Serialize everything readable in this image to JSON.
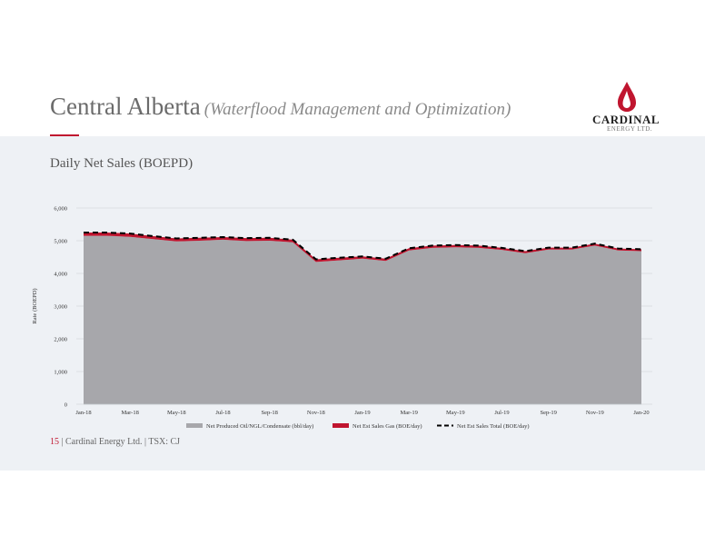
{
  "header": {
    "title": "Central Alberta",
    "subtitle": "(Waterflood Management and Optimization)"
  },
  "logo": {
    "name": "CARDINAL",
    "sub": "ENERGY LTD.",
    "icon": "flame-drop-icon",
    "color": "#c0152f"
  },
  "footer": {
    "page_number": "15",
    "text": "| Cardinal Energy Ltd. | TSX: CJ"
  },
  "chart_data": {
    "type": "area",
    "title": "Daily Net Sales (BOEPD)",
    "ylabel": "Rate (BOEPD)",
    "xlabel": "",
    "ylim": [
      0,
      6000
    ],
    "yticks": [
      "0",
      "1,000",
      "2,000",
      "3,000",
      "4,000",
      "5,000",
      "6,000"
    ],
    "xticks": [
      "Jan-18",
      "Mar-18",
      "May-18",
      "Jul-18",
      "Sep-18",
      "Nov-18",
      "Jan-19",
      "Mar-19",
      "May-19",
      "Jul-19",
      "Sep-19",
      "Nov-19",
      "Jan-20"
    ],
    "grid": true,
    "legend_position": "bottom",
    "x": [
      "Jan-18",
      "Feb-18",
      "Mar-18",
      "Apr-18",
      "May-18",
      "Jun-18",
      "Jul-18",
      "Aug-18",
      "Sep-18",
      "Oct-18",
      "Nov-18",
      "Dec-18",
      "Jan-19",
      "Feb-19",
      "Mar-19",
      "Apr-19",
      "May-19",
      "Jun-19",
      "Jul-19",
      "Aug-19",
      "Sep-19",
      "Oct-19",
      "Nov-19",
      "Dec-19",
      "Jan-20"
    ],
    "series": [
      {
        "name": "Net Produced Oil/NGL/Condensate (bbl/day)",
        "type": "area",
        "color": "#a7a7ab",
        "values": [
          5150,
          5150,
          5120,
          5050,
          4980,
          5000,
          5030,
          4990,
          5000,
          4950,
          4350,
          4400,
          4450,
          4380,
          4700,
          4780,
          4800,
          4780,
          4720,
          4620,
          4730,
          4730,
          4850,
          4700,
          4680
        ]
      },
      {
        "name": "Net Est Sales Gas (BOE/day)",
        "type": "band",
        "color": "#c0152f",
        "values": [
          100,
          100,
          100,
          90,
          90,
          90,
          80,
          90,
          90,
          80,
          80,
          80,
          70,
          70,
          70,
          70,
          70,
          70,
          60,
          60,
          60,
          60,
          60,
          60,
          60
        ]
      },
      {
        "name": "Net Est Sales Total (BOE/day)",
        "type": "line",
        "style": "dashed",
        "color": "#000000",
        "values": [
          5250,
          5250,
          5220,
          5140,
          5070,
          5090,
          5110,
          5080,
          5090,
          5030,
          4430,
          4480,
          4520,
          4450,
          4770,
          4850,
          4870,
          4850,
          4780,
          4680,
          4790,
          4790,
          4910,
          4760,
          4740
        ]
      }
    ]
  }
}
